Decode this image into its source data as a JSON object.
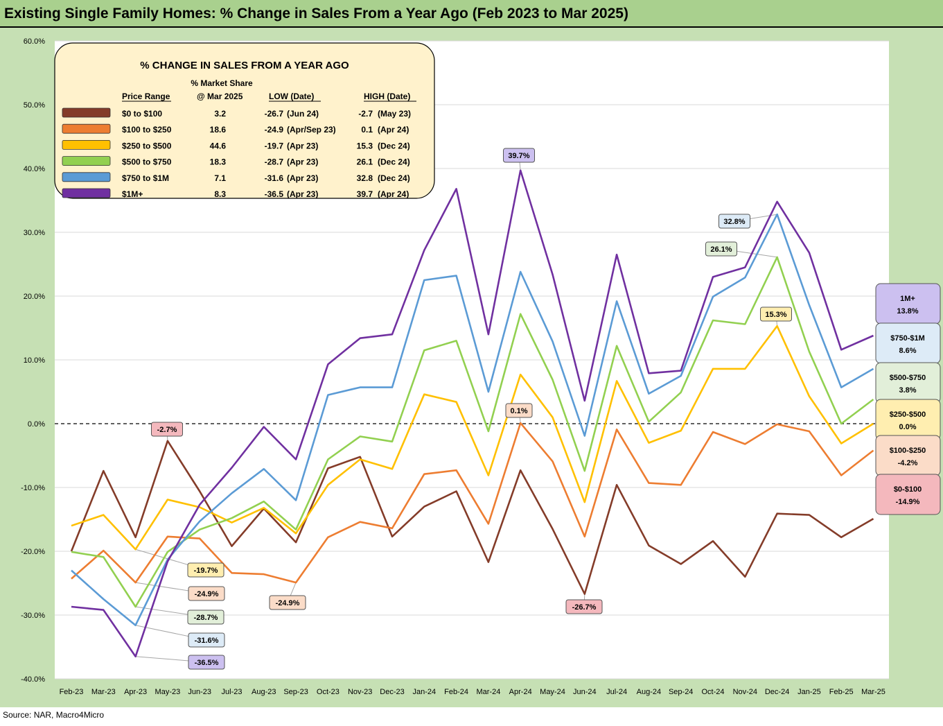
{
  "title": "Existing Single Family Homes: % Change in Sales From a Year Ago (Feb 2023 to Mar 2025)",
  "source": "Source: NAR, Macro4Micro",
  "chart_data": {
    "type": "line",
    "x": [
      "Feb-23",
      "Mar-23",
      "Apr-23",
      "May-23",
      "Jun-23",
      "Jul-23",
      "Aug-23",
      "Sep-23",
      "Oct-23",
      "Nov-23",
      "Dec-23",
      "Jan-24",
      "Feb-24",
      "Mar-24",
      "Apr-24",
      "May-24",
      "Jun-24",
      "Jul-24",
      "Aug-24",
      "Sep-24",
      "Oct-24",
      "Nov-24",
      "Dec-24",
      "Jan-25",
      "Feb-25",
      "Mar-25"
    ],
    "ylim": [
      -40,
      60
    ],
    "yticks": [
      "60.0%",
      "50.0%",
      "40.0%",
      "30.0%",
      "20.0%",
      "10.0%",
      "0.0%",
      "-10.0%",
      "-20.0%",
      "-30.0%",
      "-40.0%"
    ],
    "ytick_values": [
      60,
      50,
      40,
      30,
      20,
      10,
      0,
      -10,
      -20,
      -30,
      -40
    ],
    "zero_line": "dashed",
    "grid": true,
    "series": [
      {
        "key": "s0",
        "color": "#843c29",
        "values": [
          -20.0,
          -7.4,
          -17.8,
          -2.7,
          -10.6,
          -19.2,
          -13.3,
          -18.6,
          -7.0,
          -5.2,
          -17.7,
          -13.0,
          -10.6,
          -21.7,
          -7.3,
          -16.5,
          -26.7,
          -9.6,
          -19.1,
          -22.0,
          -18.4,
          -24.0,
          -14.1,
          -14.3,
          -17.8,
          -14.9
        ]
      },
      {
        "key": "s1",
        "color": "#ed7d31",
        "values": [
          -24.3,
          -19.9,
          -24.9,
          -17.7,
          -18.0,
          -23.4,
          -23.6,
          -24.9,
          -17.8,
          -15.4,
          -16.4,
          -7.9,
          -7.3,
          -15.7,
          0.1,
          -5.9,
          -17.7,
          -0.9,
          -9.3,
          -9.6,
          -1.3,
          -3.2,
          -0.1,
          -1.2,
          -8.1,
          -4.2
        ]
      },
      {
        "key": "s2",
        "color": "#ffc000",
        "values": [
          -16.0,
          -14.3,
          -19.7,
          -11.9,
          -13.1,
          -15.5,
          -13.2,
          -17.2,
          -9.6,
          -5.6,
          -7.1,
          4.6,
          3.4,
          -8.1,
          7.7,
          1.0,
          -12.3,
          6.7,
          -3.0,
          -1.1,
          8.6,
          8.6,
          15.3,
          4.3,
          -3.1,
          0.0
        ]
      },
      {
        "key": "s3",
        "color": "#92d050",
        "values": [
          -20.1,
          -20.9,
          -28.7,
          -20.1,
          -16.6,
          -14.8,
          -12.2,
          -16.6,
          -5.6,
          -2.0,
          -2.8,
          11.5,
          13.0,
          -1.2,
          17.2,
          6.9,
          -7.4,
          12.2,
          0.3,
          4.9,
          16.2,
          15.6,
          26.1,
          11.3,
          0.0,
          3.8
        ]
      },
      {
        "key": "s4",
        "color": "#5b9bd5",
        "values": [
          -23.0,
          -27.5,
          -31.6,
          -21.3,
          -15.3,
          -10.9,
          -7.1,
          -12.0,
          4.5,
          5.7,
          5.7,
          22.5,
          23.2,
          5.0,
          23.8,
          12.9,
          -1.9,
          19.2,
          4.7,
          7.5,
          19.9,
          22.9,
          32.8,
          18.6,
          5.7,
          8.6
        ]
      },
      {
        "key": "s5",
        "color": "#7030a0",
        "values": [
          -28.7,
          -29.2,
          -36.5,
          -21.6,
          -12.7,
          -6.9,
          -0.5,
          -5.6,
          9.3,
          13.4,
          14.0,
          27.2,
          36.8,
          14.0,
          39.7,
          23.4,
          3.6,
          26.5,
          7.9,
          8.3,
          23.0,
          24.5,
          34.8,
          26.8,
          11.6,
          13.8
        ]
      }
    ],
    "callouts": [
      {
        "text": "-2.7%",
        "bg": "#f4b8bd",
        "value_x": 3,
        "value_y": -2.7
      },
      {
        "text": "-19.7%",
        "bg": "#ffeeb0",
        "value_x": 2,
        "value_y": -19.7
      },
      {
        "text": "-24.9%",
        "bg": "#fbdcc8",
        "value_x": 2,
        "value_y": -24.9
      },
      {
        "text": "-28.7%",
        "bg": "#e2efd9",
        "value_x": 2,
        "value_y": -28.7
      },
      {
        "text": "-31.6%",
        "bg": "#ddebf7",
        "value_x": 2,
        "value_y": -31.6
      },
      {
        "text": "-36.5%",
        "bg": "#ccc0f0",
        "value_x": 2,
        "value_y": -36.5
      },
      {
        "text": "-24.9%",
        "bg": "#fbdcc8",
        "value_x": 7,
        "value_y": -24.9
      },
      {
        "text": "39.7%",
        "bg": "#ccc0f0",
        "value_x": 14,
        "value_y": 39.7
      },
      {
        "text": "0.1%",
        "bg": "#fbdcc8",
        "value_x": 14,
        "value_y": 0.1
      },
      {
        "text": "-26.7%",
        "bg": "#f4b8bd",
        "value_x": 16,
        "value_y": -26.7
      },
      {
        "text": "32.8%",
        "bg": "#ddebf7",
        "value_x": 22,
        "value_y": 32.8
      },
      {
        "text": "26.1%",
        "bg": "#e2efd9",
        "value_x": 22,
        "value_y": 26.1
      },
      {
        "text": "15.3%",
        "bg": "#ffeeb0",
        "value_x": 22,
        "value_y": 15.3
      }
    ],
    "end_labels": [
      {
        "name": "1M+",
        "value": "13.8%",
        "bg": "#ccc0f0"
      },
      {
        "name": "$750-$1M",
        "value": "8.6%",
        "bg": "#ddebf7"
      },
      {
        "name": "$500-$750",
        "value": "3.8%",
        "bg": "#e2efd9"
      },
      {
        "name": "$250-$500",
        "value": "0.0%",
        "bg": "#ffeeb0"
      },
      {
        "name": "$100-$250",
        "value": "-4.2%",
        "bg": "#fbdcc8"
      },
      {
        "name": "$0-$100",
        "value": "-14.9%",
        "bg": "#f4b8bd"
      }
    ],
    "table": {
      "title": "% CHANGE IN SALES FROM A YEAR AGO",
      "header_top": "% Market Share",
      "headers": [
        "Price Range",
        "@ Mar 2025",
        "LOW  (Date)",
        "HIGH  (Date)"
      ],
      "rows": [
        {
          "color": "#843c29",
          "range": "$0 to $100",
          "share": "3.2",
          "low": "-26.7",
          "low_date": "(Jun 24)",
          "high": "-2.7",
          "high_date": "(May 23)"
        },
        {
          "color": "#ed7d31",
          "range": "$100 to $250",
          "share": "18.6",
          "low": "-24.9",
          "low_date": "(Apr/Sep 23)",
          "high": "0.1",
          "high_date": "(Apr 24)"
        },
        {
          "color": "#ffc000",
          "range": "$250 to $500",
          "share": "44.6",
          "low": "-19.7",
          "low_date": "(Apr 23)",
          "high": "15.3",
          "high_date": "(Dec 24)"
        },
        {
          "color": "#92d050",
          "range": "$500 to $750",
          "share": "18.3",
          "low": "-28.7",
          "low_date": "(Apr 23)",
          "high": "26.1",
          "high_date": "(Dec 24)"
        },
        {
          "color": "#5b9bd5",
          "range": "$750 to $1M",
          "share": "7.1",
          "low": "-31.6",
          "low_date": "(Apr 23)",
          "high": "32.8",
          "high_date": "(Dec 24)"
        },
        {
          "color": "#7030a0",
          "range": "$1M+",
          "share": "8.3",
          "low": "-36.5",
          "low_date": "(Apr 23)",
          "high": "39.7",
          "high_date": "(Apr 24)"
        }
      ]
    }
  }
}
